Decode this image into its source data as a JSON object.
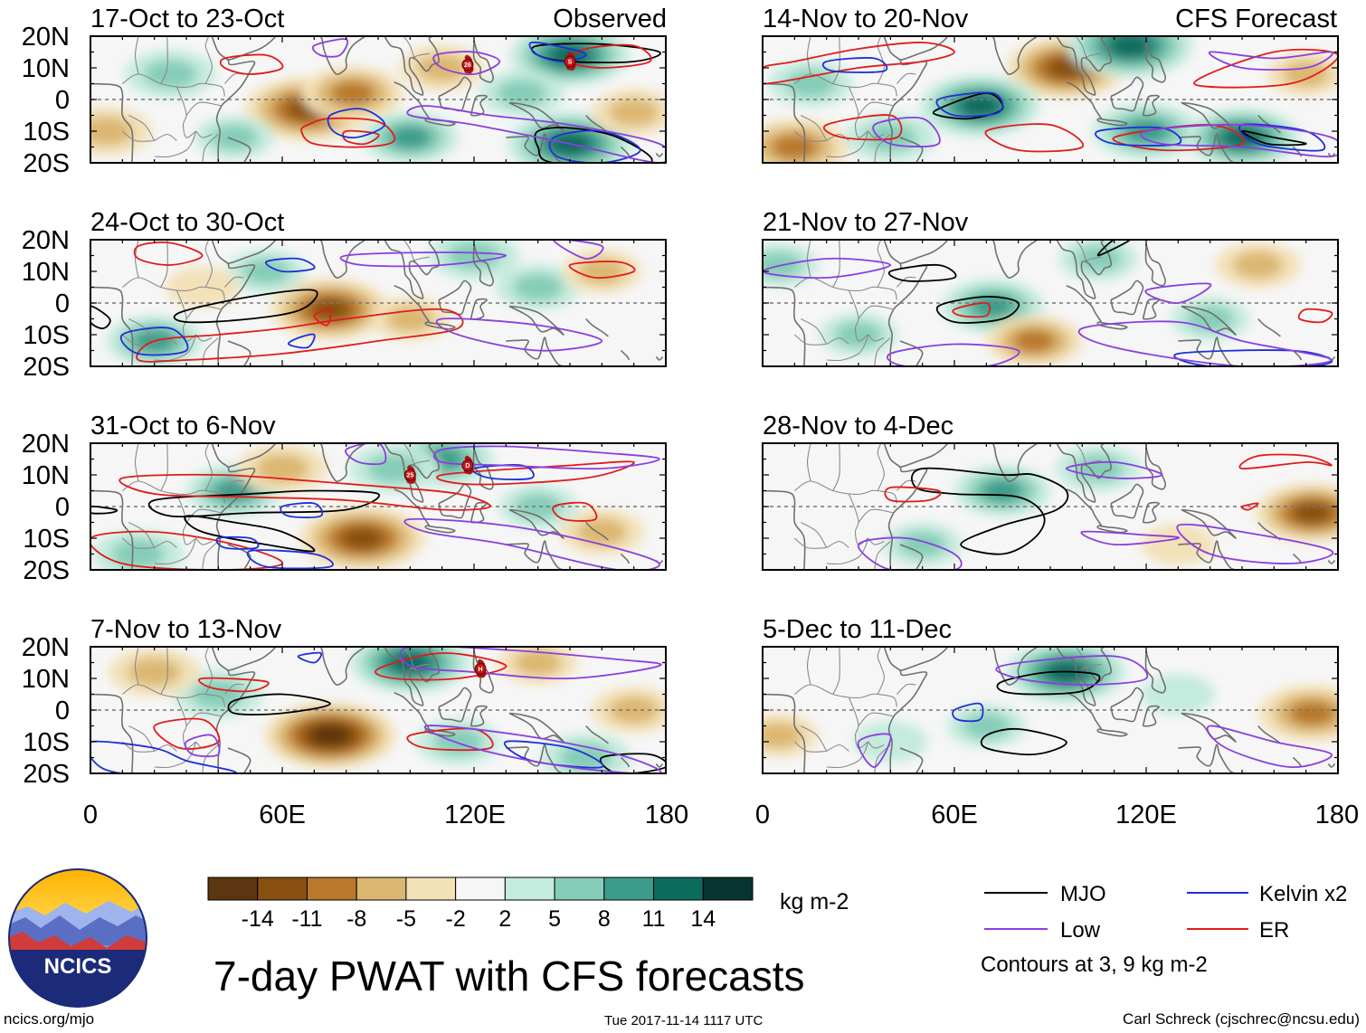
{
  "title": "7-day PWAT with CFS forecasts",
  "panel_type": {
    "observed": "Observed",
    "forecast": "CFS Forecast"
  },
  "observed_panels": [
    {
      "period": "17-Oct to 23-Oct"
    },
    {
      "period": "24-Oct to 30-Oct"
    },
    {
      "period": "31-Oct to 6-Nov"
    },
    {
      "period": "7-Nov to 13-Nov"
    }
  ],
  "forecast_panels": [
    {
      "period": "14-Nov to 20-Nov"
    },
    {
      "period": "21-Nov to 27-Nov"
    },
    {
      "period": "28-Nov to 4-Dec"
    },
    {
      "period": "5-Dec to 11-Dec"
    }
  ],
  "lat_labels": [
    "20N",
    "10N",
    "0",
    "10S",
    "20S"
  ],
  "lon_labels": [
    "0",
    "60E",
    "120E",
    "180"
  ],
  "colorbar": {
    "labels": [
      "-14",
      "-11",
      "-8",
      "-5",
      "-2",
      "2",
      "5",
      "8",
      "11",
      "14"
    ],
    "colors": [
      "#5c3610",
      "#875011",
      "#b9782b",
      "#dbb771",
      "#f3e1b8",
      "#f6f6f6",
      "#c4ebdd",
      "#85cdb8",
      "#3c9c8a",
      "#0d6b5e",
      "#08352f"
    ],
    "units": "kg m-2"
  },
  "legend": {
    "items": [
      {
        "label": "MJO",
        "color": "#000000"
      },
      {
        "label": "Kelvin x2",
        "color": "#1e30d8"
      },
      {
        "label": "Low",
        "color": "#8a3fe0"
      },
      {
        "label": "ER",
        "color": "#e01c1c"
      }
    ],
    "note": "Contours at 3, 9 kg m-2"
  },
  "logo": {
    "text": "NCICS"
  },
  "footer": {
    "url": "ncics.org/mjo",
    "timestamp": "Tue 2017-11-14 1117 UTC",
    "credit": "Carl Schreck (cjschrec@ncsu.edu)"
  },
  "storm_markers": [
    {
      "panel": 0,
      "label": "26"
    },
    {
      "panel": 0,
      "label": "S"
    },
    {
      "panel": 2,
      "label": "25"
    },
    {
      "panel": 2,
      "label": "D"
    },
    {
      "panel": 3,
      "label": "H"
    }
  ],
  "field_blobs": [
    [
      {
        "lon": 68,
        "lat": -3,
        "v": -13
      },
      {
        "lon": 82,
        "lat": 2,
        "v": -9
      },
      {
        "lon": 150,
        "lat": 14,
        "v": 12
      },
      {
        "lon": 150,
        "lat": -14,
        "v": 13
      },
      {
        "lon": 25,
        "lat": 8,
        "v": 7
      },
      {
        "lon": 100,
        "lat": -12,
        "v": 8
      },
      {
        "lon": 170,
        "lat": -4,
        "v": -6
      },
      {
        "lon": 135,
        "lat": 2,
        "v": 6
      },
      {
        "lon": 5,
        "lat": -10,
        "v": -7
      },
      {
        "lon": 110,
        "lat": 10,
        "v": -6
      },
      {
        "lon": 45,
        "lat": -12,
        "v": 5
      }
    ],
    [
      {
        "lon": 75,
        "lat": -2,
        "v": -12
      },
      {
        "lon": 55,
        "lat": 10,
        "v": 5
      },
      {
        "lon": 140,
        "lat": 5,
        "v": 6
      },
      {
        "lon": 20,
        "lat": -12,
        "v": 8
      },
      {
        "lon": 100,
        "lat": -5,
        "v": -5
      },
      {
        "lon": 160,
        "lat": 10,
        "v": -5
      },
      {
        "lon": 120,
        "lat": 15,
        "v": 7
      },
      {
        "lon": 35,
        "lat": 5,
        "v": -4
      }
    ],
    [
      {
        "lon": 85,
        "lat": -10,
        "v": -13
      },
      {
        "lon": 45,
        "lat": 5,
        "v": 8
      },
      {
        "lon": 110,
        "lat": 15,
        "v": 9
      },
      {
        "lon": 60,
        "lat": 12,
        "v": -7
      },
      {
        "lon": 160,
        "lat": -8,
        "v": -6
      },
      {
        "lon": 15,
        "lat": -15,
        "v": 7
      },
      {
        "lon": 140,
        "lat": 0,
        "v": 5
      },
      {
        "lon": 95,
        "lat": 12,
        "v": 7
      }
    ],
    [
      {
        "lon": 75,
        "lat": -8,
        "v": -14
      },
      {
        "lon": 100,
        "lat": 15,
        "v": 12
      },
      {
        "lon": 40,
        "lat": 5,
        "v": 7
      },
      {
        "lon": 115,
        "lat": -10,
        "v": 6
      },
      {
        "lon": 155,
        "lat": -15,
        "v": 7
      },
      {
        "lon": 20,
        "lat": 12,
        "v": -7
      },
      {
        "lon": 140,
        "lat": 15,
        "v": -5
      },
      {
        "lon": 170,
        "lat": 0,
        "v": -6
      }
    ],
    [
      {
        "lon": 95,
        "lat": 10,
        "v": -12
      },
      {
        "lon": 68,
        "lat": -2,
        "v": 12
      },
      {
        "lon": 115,
        "lat": 17,
        "v": 13
      },
      {
        "lon": 120,
        "lat": -10,
        "v": 10
      },
      {
        "lon": 150,
        "lat": -12,
        "v": 11
      },
      {
        "lon": 15,
        "lat": 5,
        "v": 6
      },
      {
        "lon": 10,
        "lat": -15,
        "v": -10
      },
      {
        "lon": 170,
        "lat": 8,
        "v": -5
      },
      {
        "lon": 40,
        "lat": -12,
        "v": 7
      }
    ],
    [
      {
        "lon": 72,
        "lat": -1,
        "v": 9
      },
      {
        "lon": 155,
        "lat": 12,
        "v": -6
      },
      {
        "lon": 85,
        "lat": -12,
        "v": -8
      },
      {
        "lon": 105,
        "lat": 14,
        "v": 5
      },
      {
        "lon": 30,
        "lat": -10,
        "v": 5
      },
      {
        "lon": 5,
        "lat": 12,
        "v": 5
      },
      {
        "lon": 140,
        "lat": -5,
        "v": 5
      }
    ],
    [
      {
        "lon": 75,
        "lat": 5,
        "v": 8
      },
      {
        "lon": 172,
        "lat": -2,
        "v": -11
      },
      {
        "lon": 105,
        "lat": 12,
        "v": 6
      },
      {
        "lon": 50,
        "lat": -12,
        "v": 5
      },
      {
        "lon": 130,
        "lat": -12,
        "v": -4
      }
    ],
    [
      {
        "lon": 95,
        "lat": 12,
        "v": 12
      },
      {
        "lon": 172,
        "lat": -1,
        "v": -10
      },
      {
        "lon": 70,
        "lat": -5,
        "v": 5
      },
      {
        "lon": 130,
        "lat": 5,
        "v": 4
      },
      {
        "lon": 5,
        "lat": -8,
        "v": -5
      },
      {
        "lon": 40,
        "lat": -10,
        "v": 4
      }
    ]
  ]
}
